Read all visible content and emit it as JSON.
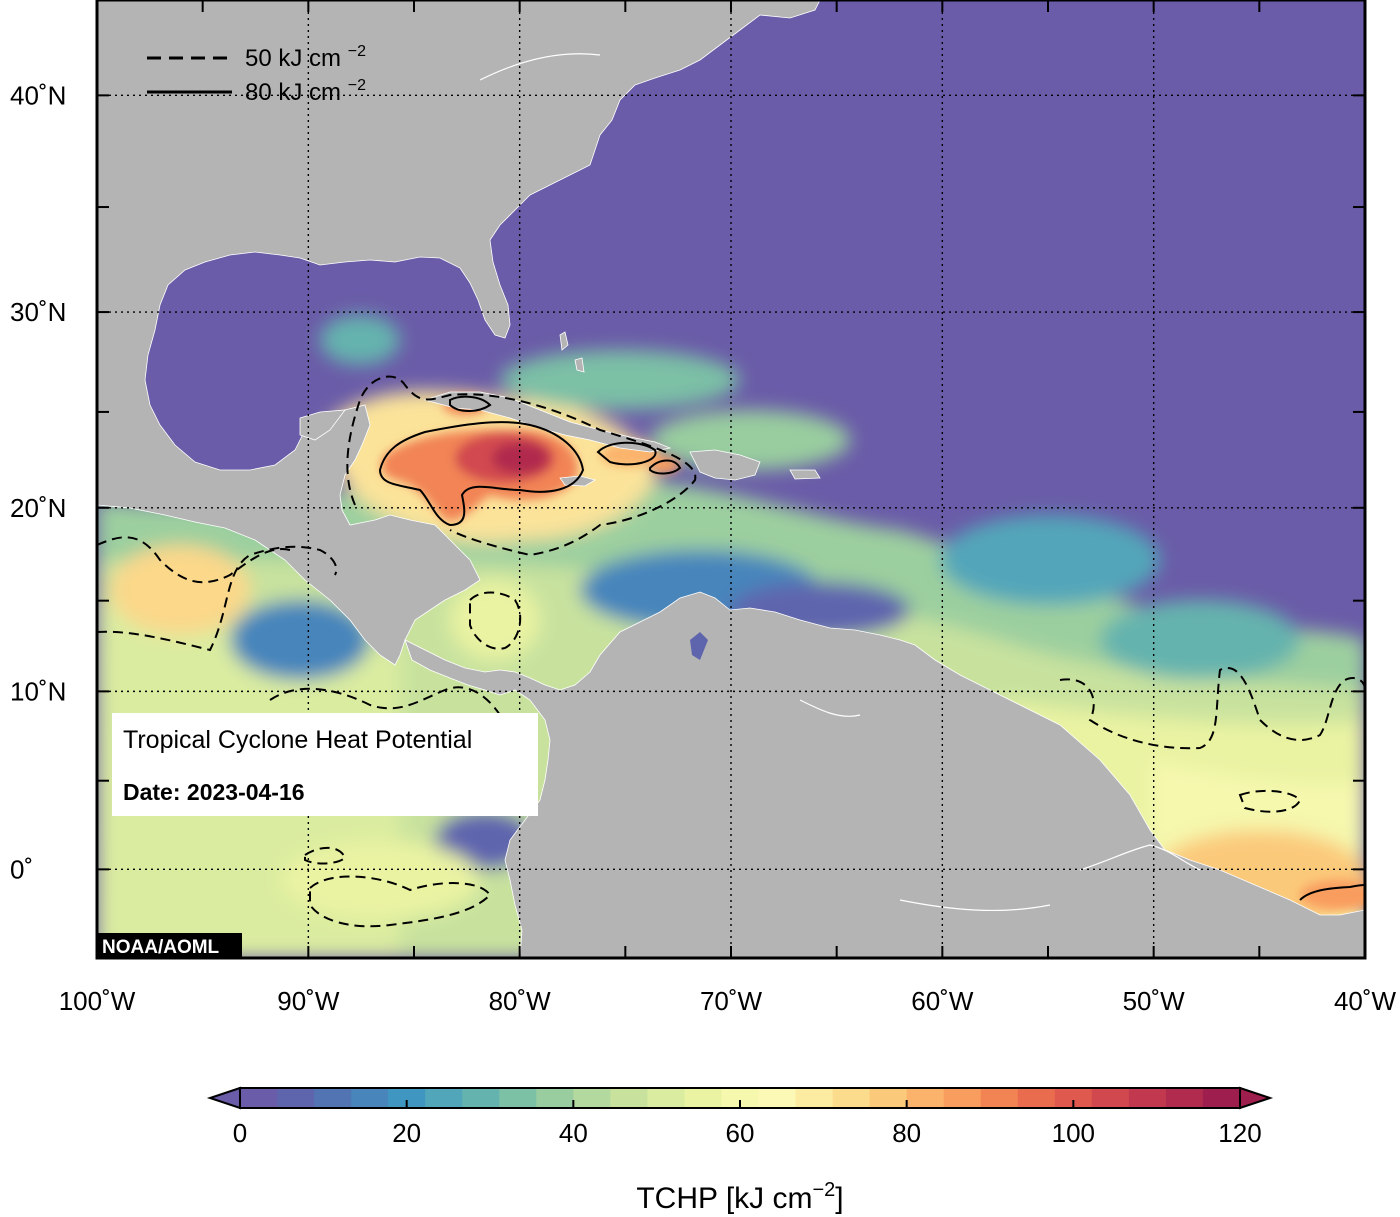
{
  "map": {
    "lon_labels": [
      "100˚W",
      "90˚W",
      "80˚W",
      "70˚W",
      "60˚W",
      "50˚W",
      "40˚W"
    ],
    "lat_labels": [
      "40˚N",
      "30˚N",
      "20˚N",
      "10˚N",
      "0˚"
    ],
    "lon_range": [
      -100,
      -40
    ],
    "lat_range": [
      -5,
      44
    ]
  },
  "contour_legend": {
    "dashed_value": "50",
    "solid_value": "80",
    "unit": "kJ cm",
    "unit_exp": "−2"
  },
  "info_box": {
    "title": "Tropical Cyclone Heat Potential",
    "date_label": "Date: 2023-04-16"
  },
  "credit": "NOAA/AOML",
  "colorbar": {
    "tick_labels": [
      "0",
      "20",
      "40",
      "60",
      "80",
      "100",
      "120"
    ],
    "title": "TCHP [kJ cm",
    "title_exp": "−2",
    "title_end": "]",
    "range": [
      0,
      120
    ],
    "colors": [
      "#6a5ca8",
      "#5e65ad",
      "#5274b3",
      "#4785bb",
      "#3f96c0",
      "#52a6b9",
      "#65b3ae",
      "#7cc0a6",
      "#99cd9f",
      "#b3d99f",
      "#c8e29e",
      "#daeca0",
      "#e9f3a2",
      "#f5f8ad",
      "#fcf8b6",
      "#fbeca2",
      "#fbdc8d",
      "#fbc97a",
      "#fbb36c",
      "#f99d5e",
      "#f28454",
      "#e96c4f",
      "#df594e",
      "#d2484f",
      "#c2394f",
      "#b12b4e",
      "#9e1e4d"
    ]
  }
}
